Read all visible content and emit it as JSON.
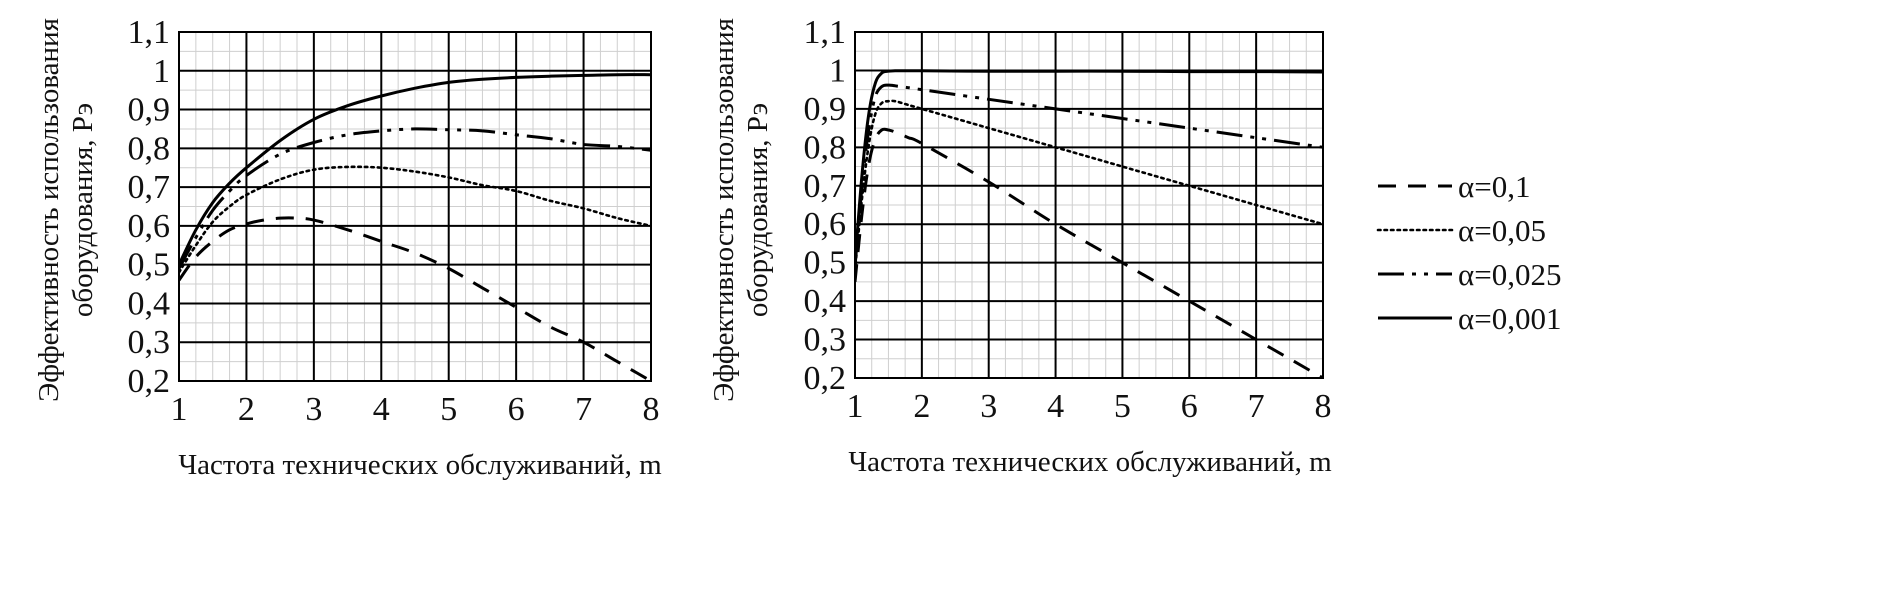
{
  "chart_data": [
    {
      "type": "line",
      "xlabel": "Частота технических обслуживаний, m",
      "ylabel": [
        "Эффективность использования",
        "оборудования, Рэ"
      ],
      "xlim": [
        1,
        8
      ],
      "ylim": [
        0.2,
        1.1
      ],
      "x_ticks": [
        {
          "v": 1,
          "label": "1"
        },
        {
          "v": 2,
          "label": "2"
        },
        {
          "v": 3,
          "label": "3"
        },
        {
          "v": 4,
          "label": "4"
        },
        {
          "v": 5,
          "label": "5"
        },
        {
          "v": 6,
          "label": "6"
        },
        {
          "v": 7,
          "label": "7"
        },
        {
          "v": 8,
          "label": "8"
        }
      ],
      "y_ticks": [
        {
          "v": 0.2,
          "label": "0,2"
        },
        {
          "v": 0.3,
          "label": "0,3"
        },
        {
          "v": 0.4,
          "label": "0,4"
        },
        {
          "v": 0.5,
          "label": "0,5"
        },
        {
          "v": 0.6,
          "label": "0,6"
        },
        {
          "v": 0.7,
          "label": "0,7"
        },
        {
          "v": 0.8,
          "label": "0,8"
        },
        {
          "v": 0.9,
          "label": "0,9"
        },
        {
          "v": 1,
          "label": "1"
        },
        {
          "v": 1.1,
          "label": "1,1"
        }
      ],
      "grid": true,
      "series": [
        {
          "name": "α=0,1",
          "dash": "dashed",
          "x": [
            1,
            1.25,
            1.5,
            1.75,
            2,
            2.25,
            2.5,
            2.75,
            3,
            3.5,
            4,
            4.5,
            5,
            5.5,
            6,
            6.5,
            7,
            7.5,
            8
          ],
          "y": [
            0.46,
            0.52,
            0.56,
            0.59,
            0.605,
            0.615,
            0.62,
            0.62,
            0.615,
            0.59,
            0.56,
            0.53,
            0.49,
            0.44,
            0.39,
            0.34,
            0.3,
            0.25,
            0.2
          ]
        },
        {
          "name": "α=0,05",
          "dash": "dotted",
          "x": [
            1,
            1.25,
            1.5,
            1.75,
            2,
            2.5,
            3,
            3.5,
            4,
            4.5,
            5,
            5.5,
            6,
            6.5,
            7,
            7.5,
            8
          ],
          "y": [
            0.48,
            0.55,
            0.61,
            0.65,
            0.68,
            0.72,
            0.745,
            0.752,
            0.75,
            0.74,
            0.725,
            0.705,
            0.69,
            0.665,
            0.645,
            0.62,
            0.6
          ]
        },
        {
          "name": "α=0,025",
          "dash": "dashdotdot",
          "x": [
            1,
            1.25,
            1.5,
            1.75,
            2,
            2.5,
            3,
            3.5,
            4,
            4.5,
            5,
            5.5,
            6,
            6.5,
            7,
            7.5,
            8
          ],
          "y": [
            0.49,
            0.57,
            0.64,
            0.69,
            0.73,
            0.785,
            0.815,
            0.835,
            0.845,
            0.85,
            0.848,
            0.845,
            0.835,
            0.825,
            0.81,
            0.805,
            0.795
          ]
        },
        {
          "name": "α=0,001",
          "dash": "solid",
          "x": [
            1,
            1.25,
            1.5,
            1.75,
            2,
            2.5,
            3,
            3.5,
            4,
            4.5,
            5,
            5.5,
            6,
            6.5,
            7,
            7.5,
            8
          ],
          "y": [
            0.5,
            0.59,
            0.66,
            0.71,
            0.75,
            0.82,
            0.875,
            0.91,
            0.935,
            0.955,
            0.97,
            0.978,
            0.983,
            0.986,
            0.988,
            0.99,
            0.99
          ]
        }
      ]
    },
    {
      "type": "line",
      "xlabel": "Частота технических обслуживаний, m",
      "ylabel": [
        "Эффективность использования",
        "оборудования, Рэ"
      ],
      "xlim": [
        1,
        8
      ],
      "ylim": [
        0.2,
        1.1
      ],
      "x_ticks": [
        {
          "v": 1,
          "label": "1"
        },
        {
          "v": 2,
          "label": "2"
        },
        {
          "v": 3,
          "label": "3"
        },
        {
          "v": 4,
          "label": "4"
        },
        {
          "v": 5,
          "label": "5"
        },
        {
          "v": 6,
          "label": "6"
        },
        {
          "v": 7,
          "label": "7"
        },
        {
          "v": 8,
          "label": "8"
        }
      ],
      "y_ticks": [
        {
          "v": 0.2,
          "label": "0,2"
        },
        {
          "v": 0.3,
          "label": "0,3"
        },
        {
          "v": 0.4,
          "label": "0,4"
        },
        {
          "v": 0.5,
          "label": "0,5"
        },
        {
          "v": 0.6,
          "label": "0,6"
        },
        {
          "v": 0.7,
          "label": "0,7"
        },
        {
          "v": 0.8,
          "label": "0,8"
        },
        {
          "v": 0.9,
          "label": "0,9"
        },
        {
          "v": 1,
          "label": "1"
        },
        {
          "v": 1.1,
          "label": "1,1"
        }
      ],
      "grid": true,
      "legend": "right",
      "series": [
        {
          "name": "α=0,1",
          "dash": "dashed",
          "x": [
            1,
            1.1,
            1.2,
            1.3,
            1.4,
            1.5,
            1.6,
            1.8,
            2,
            3,
            4,
            5,
            6,
            7,
            8
          ],
          "y": [
            0.45,
            0.62,
            0.75,
            0.82,
            0.845,
            0.845,
            0.84,
            0.825,
            0.81,
            0.71,
            0.6,
            0.5,
            0.4,
            0.3,
            0.2
          ]
        },
        {
          "name": "α=0,05",
          "dash": "dotted",
          "x": [
            1,
            1.1,
            1.2,
            1.3,
            1.4,
            1.5,
            1.6,
            1.8,
            2,
            3,
            4,
            5,
            6,
            7,
            8
          ],
          "y": [
            0.48,
            0.66,
            0.8,
            0.885,
            0.915,
            0.92,
            0.92,
            0.91,
            0.9,
            0.85,
            0.8,
            0.75,
            0.7,
            0.65,
            0.6
          ]
        },
        {
          "name": "α=0,025",
          "dash": "dashdotdot",
          "x": [
            1,
            1.1,
            1.2,
            1.3,
            1.4,
            1.5,
            1.6,
            1.8,
            2,
            3,
            4,
            5,
            6,
            7,
            8
          ],
          "y": [
            0.49,
            0.69,
            0.84,
            0.93,
            0.958,
            0.962,
            0.96,
            0.955,
            0.95,
            0.925,
            0.9,
            0.875,
            0.85,
            0.825,
            0.8
          ]
        },
        {
          "name": "α=0,001",
          "dash": "solid",
          "x": [
            1,
            1.1,
            1.2,
            1.3,
            1.4,
            1.5,
            1.6,
            1.8,
            2,
            3,
            4,
            5,
            6,
            7,
            8
          ],
          "y": [
            0.5,
            0.72,
            0.88,
            0.965,
            0.993,
            0.998,
            0.999,
            0.999,
            0.999,
            0.998,
            0.998,
            0.998,
            0.997,
            0.997,
            0.996
          ]
        }
      ]
    }
  ]
}
